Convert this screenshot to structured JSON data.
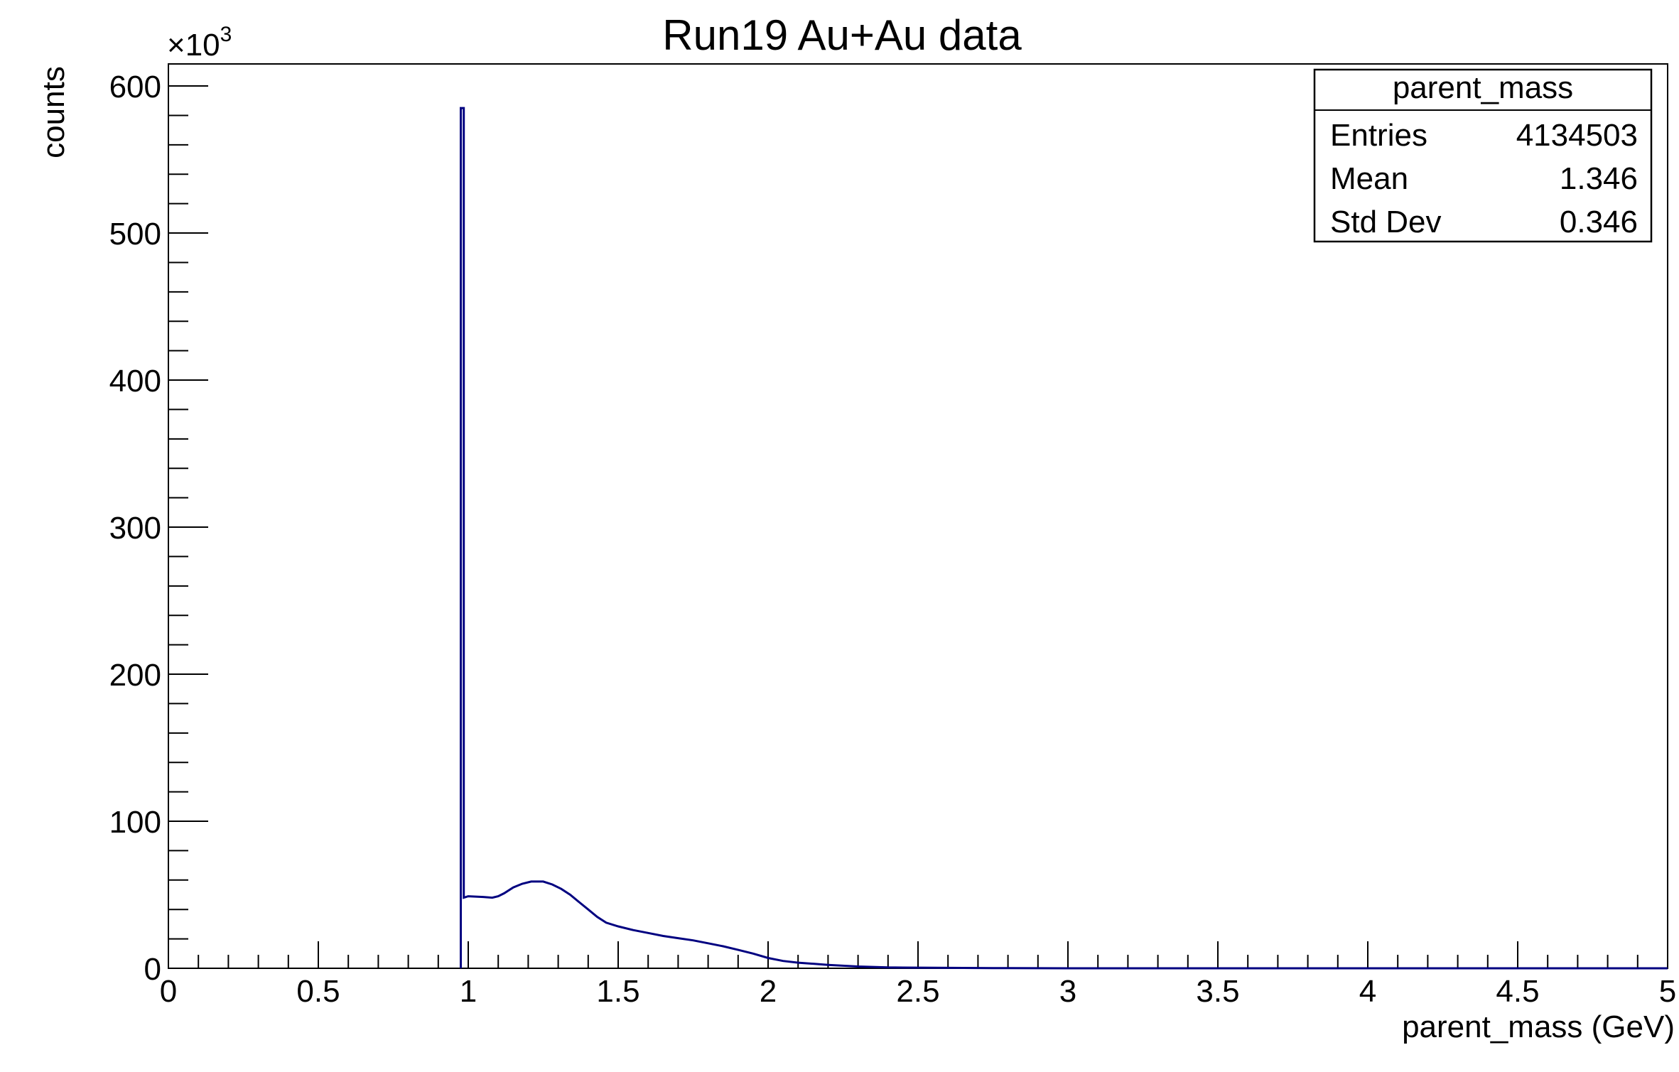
{
  "chart_data": {
    "type": "histogram",
    "title": "Run19 Au+Au data",
    "xlabel": "parent_mass (GeV)",
    "ylabel": "counts",
    "y_multiplier_label": "×10",
    "y_multiplier_exponent": "3",
    "xlim": [
      0,
      5
    ],
    "ylim": [
      0,
      615
    ],
    "x_tick_labels": [
      "0",
      "0.5",
      "1",
      "1.5",
      "2",
      "2.5",
      "3",
      "3.5",
      "4",
      "4.5",
      "5"
    ],
    "y_tick_labels": [
      "0",
      "100",
      "200",
      "300",
      "400",
      "500",
      "600"
    ],
    "grid": false,
    "legend_position": "top-right",
    "line_color": "#000080",
    "series": [
      {
        "points": [
          [
            0.975,
            0
          ],
          [
            0.975,
            585
          ],
          [
            0.985,
            585
          ],
          [
            0.985,
            48
          ],
          [
            1.0,
            49
          ],
          [
            1.05,
            48.5
          ],
          [
            1.08,
            48
          ],
          [
            1.1,
            49
          ],
          [
            1.12,
            51
          ],
          [
            1.15,
            55
          ],
          [
            1.18,
            57.5
          ],
          [
            1.21,
            59
          ],
          [
            1.25,
            59
          ],
          [
            1.28,
            57
          ],
          [
            1.31,
            54
          ],
          [
            1.34,
            50
          ],
          [
            1.37,
            45
          ],
          [
            1.4,
            40
          ],
          [
            1.43,
            35
          ],
          [
            1.46,
            31
          ],
          [
            1.5,
            28.5
          ],
          [
            1.55,
            26
          ],
          [
            1.6,
            24
          ],
          [
            1.65,
            22
          ],
          [
            1.7,
            20.5
          ],
          [
            1.75,
            19
          ],
          [
            1.8,
            17
          ],
          [
            1.85,
            15
          ],
          [
            1.9,
            12.5
          ],
          [
            1.95,
            10
          ],
          [
            2.0,
            7
          ],
          [
            2.05,
            5
          ],
          [
            2.1,
            3.8
          ],
          [
            2.2,
            2.3
          ],
          [
            2.3,
            1.2
          ],
          [
            2.4,
            0.6
          ],
          [
            2.6,
            0.3
          ],
          [
            2.8,
            0.1
          ],
          [
            3.0,
            0
          ],
          [
            5.0,
            0
          ]
        ]
      }
    ],
    "stats_box": {
      "title": "parent_mass",
      "rows": [
        {
          "label": "Entries",
          "value": "4134503"
        },
        {
          "label": "Mean",
          "value": "1.346"
        },
        {
          "label": "Std Dev",
          "value": "0.346"
        }
      ]
    }
  }
}
